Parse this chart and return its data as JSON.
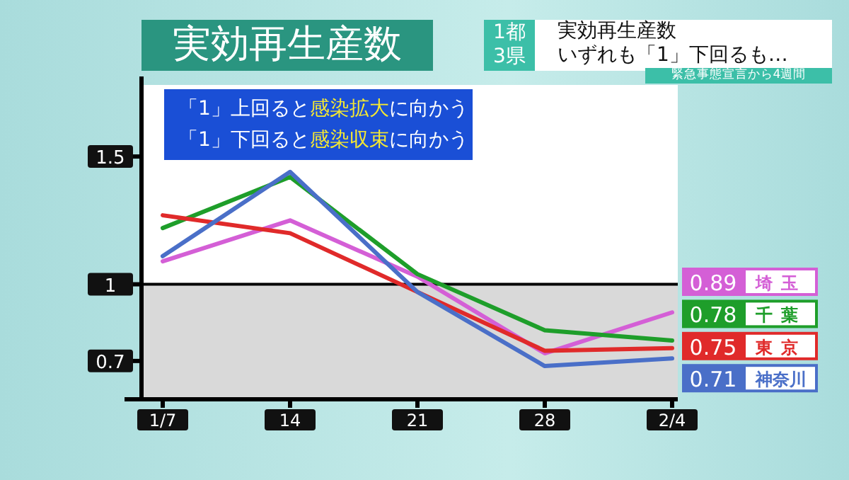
{
  "chart_data": {
    "type": "line",
    "title": "実効再生産数",
    "categories": [
      "1/7",
      "14",
      "21",
      "28",
      "2/4"
    ],
    "series": [
      {
        "name": "埼玉",
        "color": "#d45fd6",
        "values": [
          1.09,
          1.25,
          1.03,
          0.73,
          0.89
        ],
        "value_labels": [
          null,
          null,
          null,
          null,
          "0.89"
        ]
      },
      {
        "name": "千葉",
        "color": "#1e9e2a",
        "values": [
          1.22,
          1.42,
          1.04,
          0.82,
          0.78
        ],
        "value_labels": [
          null,
          null,
          null,
          null,
          "0.78"
        ]
      },
      {
        "name": "東京",
        "color": "#e02a2a",
        "values": [
          1.27,
          1.2,
          0.97,
          0.74,
          0.75
        ],
        "value_labels": [
          null,
          null,
          null,
          null,
          "0.75"
        ]
      },
      {
        "name": "神奈川",
        "color": "#4a6fc8",
        "values": [
          1.11,
          1.44,
          0.97,
          0.68,
          0.71
        ],
        "value_labels": [
          null,
          null,
          null,
          null,
          "0.71"
        ]
      }
    ],
    "ylim": [
      0.55,
      1.78
    ],
    "yticks": [
      0.7,
      1,
      1.5
    ],
    "bands": [
      {
        "axis": "y",
        "from": 0.55,
        "to": 1,
        "color": "#d9d9d9"
      }
    ],
    "ref_lines": [
      {
        "axis": "y",
        "value": 1,
        "color": "#000000"
      }
    ],
    "legend": "right",
    "marker": "none",
    "line_style": "solid",
    "grid": false,
    "annotations": [
      "1都 3県",
      "実効再生産数",
      "いずれも「1」下回るも…",
      "緊急事態宣言から4週間",
      "「1」上回ると**感染拡大**に向かう",
      "「1」下回ると**感染収束**に向かう"
    ]
  }
}
